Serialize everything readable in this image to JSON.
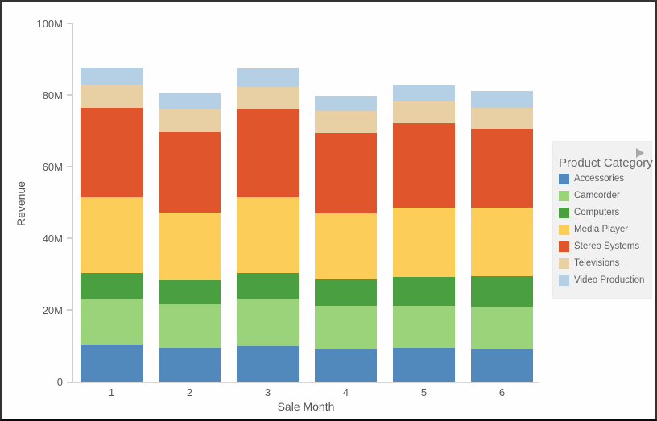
{
  "chart_data": {
    "type": "bar",
    "stacked": true,
    "title": "",
    "xlabel": "Sale Month",
    "ylabel": "Revenue",
    "categories": [
      "1",
      "2",
      "3",
      "4",
      "5",
      "6"
    ],
    "y_tick_labels": [
      "0",
      "20M",
      "40M",
      "60M",
      "80M",
      "100M"
    ],
    "y_tick_values": [
      0,
      20,
      40,
      60,
      80,
      100
    ],
    "ylim": [
      0,
      100
    ],
    "value_unit": "millions",
    "grid": "off",
    "legend_position": "right",
    "series": [
      {
        "name": "Accessories",
        "color": "#5289bd",
        "values": [
          10.4,
          9.5,
          10.1,
          9.2,
          9.5,
          9.0
        ]
      },
      {
        "name": "Camcorder",
        "color": "#9ad37a",
        "values": [
          12.8,
          12.1,
          12.9,
          12.1,
          11.8,
          11.9
        ]
      },
      {
        "name": "Computers",
        "color": "#4aa040",
        "values": [
          7.2,
          6.8,
          7.4,
          7.3,
          8.0,
          8.6
        ]
      },
      {
        "name": "Media Player",
        "color": "#fccd58",
        "values": [
          21.2,
          18.8,
          21.2,
          18.5,
          19.4,
          19.0
        ]
      },
      {
        "name": "Stereo Systems",
        "color": "#e1552c",
        "values": [
          24.8,
          22.6,
          24.3,
          22.4,
          23.4,
          22.2
        ]
      },
      {
        "name": "Televisions",
        "color": "#e9cfa4",
        "values": [
          6.5,
          6.1,
          6.3,
          6.0,
          6.1,
          5.7
        ]
      },
      {
        "name": "Video Production",
        "color": "#b5cfe4",
        "values": [
          4.7,
          4.5,
          5.2,
          4.2,
          4.5,
          4.7
        ]
      }
    ],
    "bar_totals": [
      87.6,
      80.4,
      87.4,
      79.7,
      82.7,
      81.1
    ]
  },
  "legend": {
    "title": "Product Category"
  },
  "axes": {
    "x_title": "Sale Month",
    "y_title": "Revenue"
  }
}
